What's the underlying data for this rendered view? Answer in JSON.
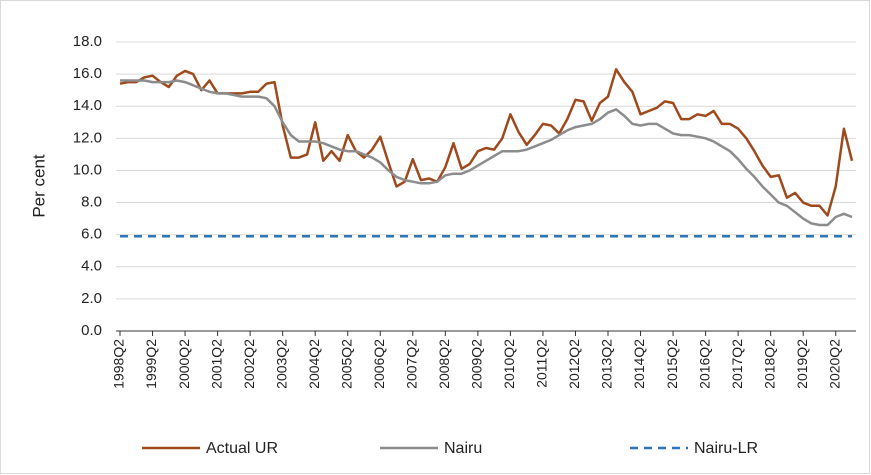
{
  "chart_data": {
    "type": "line",
    "ylabel": "Per cent",
    "categories": [
      "1998Q2",
      null,
      null,
      null,
      "1999Q2",
      null,
      null,
      null,
      "2000Q2",
      null,
      null,
      null,
      "2001Q2",
      null,
      null,
      null,
      "2002Q2",
      null,
      null,
      null,
      "2003Q2",
      null,
      null,
      null,
      "2004Q2",
      null,
      null,
      null,
      "2005Q2",
      null,
      null,
      null,
      "2006Q2",
      null,
      null,
      null,
      "2007Q2",
      null,
      null,
      null,
      "2008Q2",
      null,
      null,
      null,
      "2009Q2",
      null,
      null,
      null,
      "2010Q2",
      null,
      null,
      null,
      "2011Q2",
      null,
      null,
      null,
      "2012Q2",
      null,
      null,
      null,
      "2013Q2",
      null,
      null,
      null,
      "2014Q2",
      null,
      null,
      null,
      "2015Q2",
      null,
      null,
      null,
      "2016Q2",
      null,
      null,
      null,
      "2017Q2",
      null,
      null,
      null,
      "2018Q2",
      null,
      null,
      null,
      "2019Q2",
      null,
      null,
      null,
      "2020Q2",
      null,
      null
    ],
    "series": [
      {
        "name": "Actual UR",
        "color": "#9e4a1c",
        "dash": false,
        "values": [
          15.4,
          15.5,
          15.5,
          15.8,
          15.9,
          15.5,
          15.2,
          15.9,
          16.2,
          16.0,
          15.0,
          15.6,
          14.8,
          14.8,
          14.8,
          14.8,
          14.9,
          14.9,
          15.4,
          15.5,
          12.8,
          10.8,
          10.8,
          11.0,
          13.0,
          10.6,
          11.2,
          10.6,
          12.2,
          11.2,
          10.8,
          11.3,
          12.1,
          10.5,
          9.0,
          9.3,
          10.7,
          9.4,
          9.5,
          9.3,
          10.2,
          11.7,
          10.1,
          10.4,
          11.2,
          11.4,
          11.3,
          12.0,
          13.5,
          12.4,
          11.6,
          12.2,
          12.9,
          12.8,
          12.3,
          13.2,
          14.4,
          14.3,
          13.1,
          14.2,
          14.6,
          16.3,
          15.5,
          14.9,
          13.5,
          13.7,
          13.9,
          14.3,
          14.2,
          13.2,
          13.2,
          13.5,
          13.4,
          13.7,
          12.9,
          12.9,
          12.6,
          12.0,
          11.2,
          10.3,
          9.6,
          9.7,
          8.3,
          8.6,
          8.0,
          7.8,
          7.8,
          7.2,
          9.0,
          12.6,
          10.6
        ]
      },
      {
        "name": "Nairu",
        "color": "#8c8c8c",
        "dash": false,
        "values": [
          15.6,
          15.6,
          15.6,
          15.6,
          15.5,
          15.5,
          15.5,
          15.6,
          15.5,
          15.3,
          15.1,
          14.9,
          14.8,
          14.8,
          14.7,
          14.6,
          14.6,
          14.6,
          14.5,
          14.0,
          13.0,
          12.2,
          11.8,
          11.8,
          11.8,
          11.7,
          11.5,
          11.3,
          11.2,
          11.2,
          11.0,
          10.8,
          10.5,
          10.0,
          9.6,
          9.4,
          9.3,
          9.2,
          9.2,
          9.3,
          9.7,
          9.8,
          9.8,
          10.0,
          10.3,
          10.6,
          10.9,
          11.2,
          11.2,
          11.2,
          11.3,
          11.5,
          11.7,
          11.9,
          12.2,
          12.5,
          12.7,
          12.8,
          12.9,
          13.2,
          13.6,
          13.8,
          13.4,
          12.9,
          12.8,
          12.9,
          12.9,
          12.6,
          12.3,
          12.2,
          12.2,
          12.1,
          12.0,
          11.8,
          11.5,
          11.2,
          10.7,
          10.1,
          9.6,
          9.0,
          8.5,
          8.0,
          7.8,
          7.4,
          7.0,
          6.7,
          6.6,
          6.6,
          7.1,
          7.3,
          7.1
        ]
      },
      {
        "name": "Nairu-LR",
        "color": "#2e75b6",
        "dash": true,
        "values": [
          5.9,
          5.9,
          5.9,
          5.9,
          5.9,
          5.9,
          5.9,
          5.9,
          5.9,
          5.9,
          5.9,
          5.9,
          5.9,
          5.9,
          5.9,
          5.9,
          5.9,
          5.9,
          5.9,
          5.9,
          5.9,
          5.9,
          5.9,
          5.9,
          5.9,
          5.9,
          5.9,
          5.9,
          5.9,
          5.9,
          5.9,
          5.9,
          5.9,
          5.9,
          5.9,
          5.9,
          5.9,
          5.9,
          5.9,
          5.9,
          5.9,
          5.9,
          5.9,
          5.9,
          5.9,
          5.9,
          5.9,
          5.9,
          5.9,
          5.9,
          5.9,
          5.9,
          5.9,
          5.9,
          5.9,
          5.9,
          5.9,
          5.9,
          5.9,
          5.9,
          5.9,
          5.9,
          5.9,
          5.9,
          5.9,
          5.9,
          5.9,
          5.9,
          5.9,
          5.9,
          5.9,
          5.9,
          5.9,
          5.9,
          5.9,
          5.9,
          5.9,
          5.9,
          5.9,
          5.9,
          5.9,
          5.9,
          5.9,
          5.9,
          5.9,
          5.9,
          5.9,
          5.9,
          5.9,
          5.9,
          5.9
        ]
      }
    ],
    "ylim": [
      0,
      18
    ],
    "yticks": [
      {
        "value": 0,
        "label": "0.0"
      },
      {
        "value": 2,
        "label": "2.0"
      },
      {
        "value": 4,
        "label": "4.0"
      },
      {
        "value": 6,
        "label": "6.0"
      },
      {
        "value": 8,
        "label": "8.0"
      },
      {
        "value": 10,
        "label": "10.0"
      },
      {
        "value": 12,
        "label": "12.0"
      },
      {
        "value": 14,
        "label": "14.0"
      },
      {
        "value": 16,
        "label": "16.0"
      },
      {
        "value": 18,
        "label": "18.0"
      }
    ],
    "grid": true
  }
}
